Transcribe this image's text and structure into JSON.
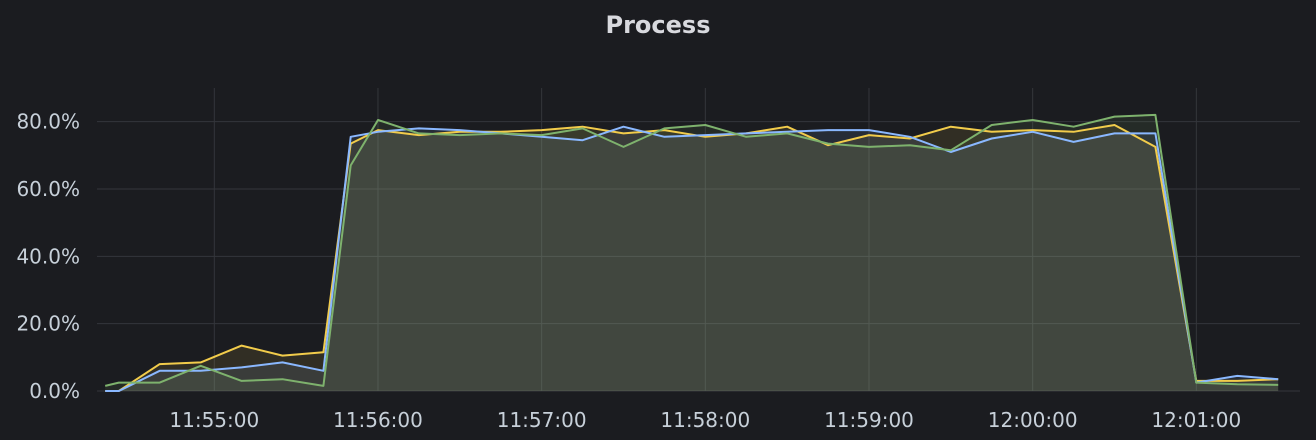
{
  "panel": {
    "title": "Process"
  },
  "colors": {
    "background": "#1b1c20",
    "grid": "#34363b",
    "text": "#c7d0d9",
    "yellow": "#f2cc4b",
    "blue": "#8ab8ff",
    "green": "#7eb26d",
    "fill": "#3f4739"
  },
  "chart_data": {
    "type": "line",
    "title": "Process",
    "ylim": [
      0,
      0.9
    ],
    "xlim": [
      "11:54:17",
      "12:01:38"
    ],
    "y_unit": "percent",
    "yticks": [
      0,
      0.2,
      0.4,
      0.6,
      0.8
    ],
    "ytick_labels": [
      "0.0%",
      "20.0%",
      "40.0%",
      "60.0%",
      "80.0%"
    ],
    "xticks": [
      "11:55:00",
      "11:56:00",
      "11:57:00",
      "11:58:00",
      "11:59:00",
      "12:00:00",
      "12:01:00"
    ],
    "grid": true,
    "fill_area": true,
    "x": [
      "11:54:20",
      "11:54:25",
      "11:54:40",
      "11:54:55",
      "11:55:10",
      "11:55:25",
      "11:55:40",
      "11:55:50",
      "11:56:00",
      "11:56:15",
      "11:56:30",
      "11:56:45",
      "11:57:00",
      "11:57:15",
      "11:57:30",
      "11:57:45",
      "11:58:00",
      "11:58:15",
      "11:58:30",
      "11:58:45",
      "11:59:00",
      "11:59:15",
      "11:59:30",
      "11:59:45",
      "12:00:00",
      "12:00:15",
      "12:00:30",
      "12:00:45",
      "12:01:00",
      "12:01:15",
      "12:01:30"
    ],
    "series": [
      {
        "color": "#f2cc4b",
        "values": [
          0.0,
          0.0,
          0.08,
          0.085,
          0.135,
          0.105,
          0.115,
          0.735,
          0.775,
          0.76,
          0.77,
          0.77,
          0.775,
          0.785,
          0.765,
          0.775,
          0.755,
          0.765,
          0.785,
          0.73,
          0.76,
          0.75,
          0.785,
          0.77,
          0.775,
          0.77,
          0.79,
          0.725,
          0.03,
          0.03,
          0.035
        ]
      },
      {
        "color": "#8ab8ff",
        "values": [
          0.0,
          0.0,
          0.06,
          0.06,
          0.07,
          0.085,
          0.06,
          0.755,
          0.77,
          0.78,
          0.775,
          0.765,
          0.755,
          0.745,
          0.785,
          0.755,
          0.76,
          0.765,
          0.77,
          0.775,
          0.775,
          0.755,
          0.71,
          0.75,
          0.77,
          0.74,
          0.765,
          0.765,
          0.025,
          0.045,
          0.035
        ]
      },
      {
        "color": "#7eb26d",
        "values": [
          0.015,
          0.025,
          0.025,
          0.075,
          0.03,
          0.035,
          0.015,
          0.67,
          0.805,
          0.765,
          0.76,
          0.765,
          0.76,
          0.78,
          0.725,
          0.78,
          0.79,
          0.755,
          0.765,
          0.735,
          0.725,
          0.73,
          0.715,
          0.79,
          0.805,
          0.785,
          0.815,
          0.82,
          0.025,
          0.02,
          0.018
        ]
      }
    ]
  }
}
